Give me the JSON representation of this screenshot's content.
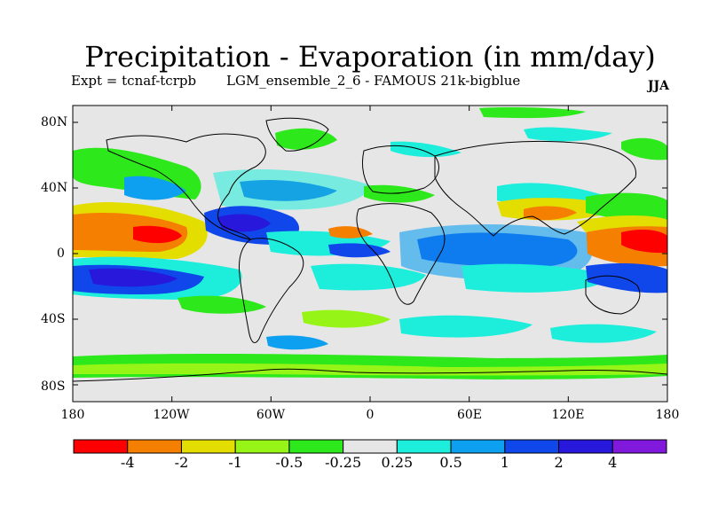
{
  "header": {
    "title": "Precipitation - Evaporation (in mm/day)",
    "experiment": "Expt = tcnaf-tcrpb",
    "run": "LGM_ensemble_2_6 - FAMOUS 21k-bigblue",
    "season": "JJA"
  },
  "map": {
    "projection": "cylindrical equidistant",
    "lon_range": [
      -180,
      180
    ],
    "lat_range": [
      -90,
      90
    ],
    "background_band_color": "#e6e6e6",
    "coastline_color": "#000000",
    "lat_ticks": [
      {
        "value": 80,
        "label": "80N"
      },
      {
        "value": 40,
        "label": "40N"
      },
      {
        "value": 0,
        "label": "0"
      },
      {
        "value": -40,
        "label": "40S"
      },
      {
        "value": -80,
        "label": "80S"
      }
    ],
    "lon_ticks": [
      {
        "value": -180,
        "label": "180"
      },
      {
        "value": -120,
        "label": "120W"
      },
      {
        "value": -60,
        "label": "60W"
      },
      {
        "value": 0,
        "label": "0"
      },
      {
        "value": 60,
        "label": "60E"
      },
      {
        "value": 120,
        "label": "120E"
      },
      {
        "value": 180,
        "label": "180"
      }
    ]
  },
  "colorbar": {
    "colors": [
      "#ff0000",
      "#f57f00",
      "#e3de00",
      "#96f516",
      "#2de81b",
      "#e6e6e6",
      "#1deedc",
      "#0ea0f0",
      "#0f47ea",
      "#2718dc",
      "#8019dc"
    ],
    "labels": [
      "-4",
      "-2",
      "-1",
      "-0.5",
      "-0.25",
      "0.25",
      "0.5",
      "1",
      "2",
      "4"
    ]
  }
}
